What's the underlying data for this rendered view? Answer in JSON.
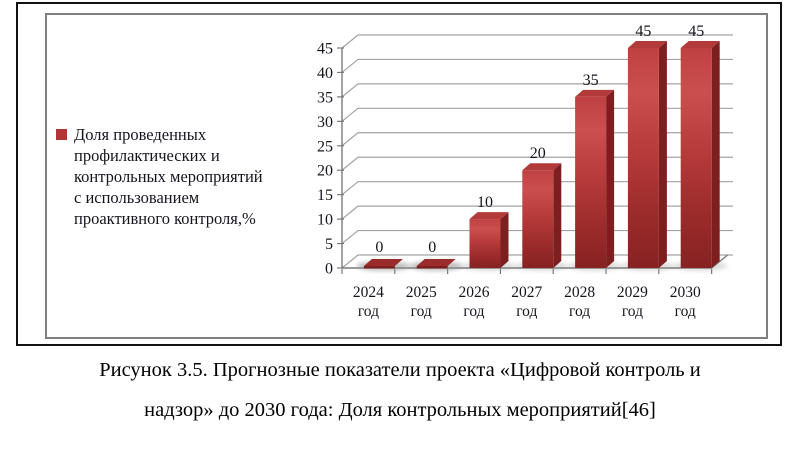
{
  "legend": {
    "marker_color": "#b23434",
    "lines": [
      "Доля проведенных",
      "профилактических и",
      "контрольных мероприятий",
      "с использованием",
      "проактивного контроля,%"
    ]
  },
  "chart_data": {
    "type": "bar",
    "projection": "3d",
    "title": "",
    "categories": [
      "2024",
      "2025",
      "2026",
      "2027",
      "2028",
      "2029",
      "2030"
    ],
    "category_suffix": "год",
    "values": [
      0,
      0,
      10,
      20,
      35,
      45,
      45
    ],
    "series": [
      {
        "name": "Доля проведенных профилактических и контрольных мероприятий с использованием проактивного контроля,%",
        "values": [
          0,
          0,
          10,
          20,
          35,
          45,
          45
        ]
      }
    ],
    "ylim": [
      0,
      45
    ],
    "yticks": [
      0,
      5,
      10,
      15,
      20,
      25,
      30,
      35,
      40,
      45
    ],
    "grid": "horizontal",
    "legend_position": "left",
    "data_labels": true,
    "colors": {
      "bar_front_stops": [
        "#bf4040",
        "#cb4f4f",
        "#b93c3c",
        "#9c2b2b",
        "#872222"
      ],
      "bar_front_offsets": [
        0,
        0.2,
        0.45,
        0.75,
        1
      ],
      "bar_top": "#b23a3a",
      "bar_side": "#7e1f1f",
      "zero_bar_top": "#9c2c2c",
      "gridline": "#a3a3a3",
      "axis": "#7a7a7a",
      "text": "#15151f",
      "shadow": "#8f8f8f"
    }
  },
  "caption": {
    "line1": "Рисунок 3.5. Прогнозные показатели проекта «Цифровой контроль и",
    "line2": "надзор» до 2030 года: Доля контрольных мероприятий[46]"
  }
}
